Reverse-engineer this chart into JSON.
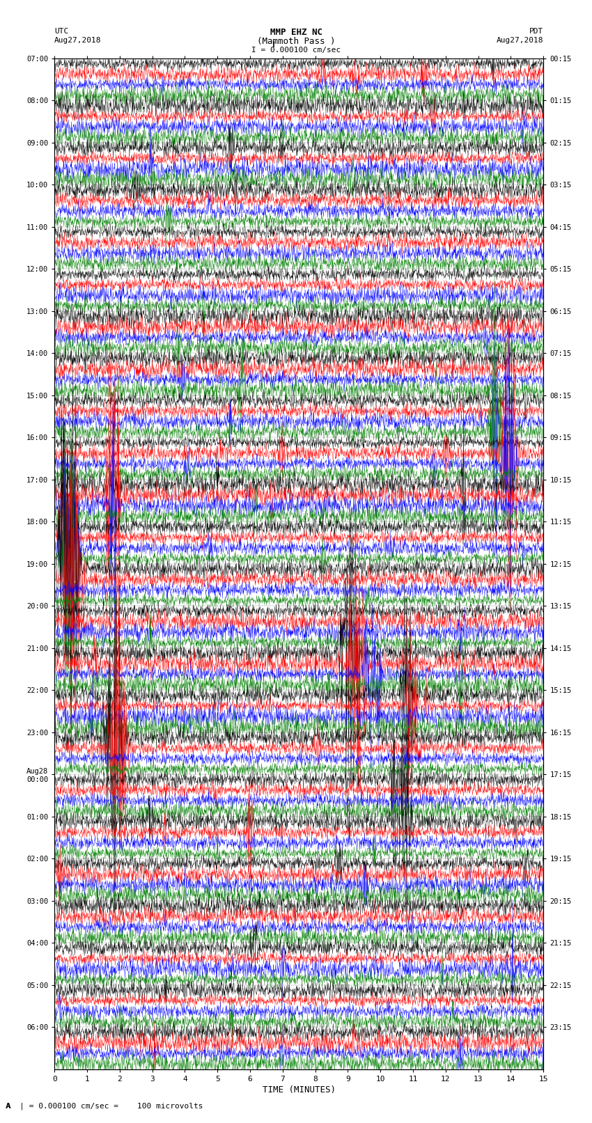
{
  "title_line1": "MMP EHZ NC",
  "title_line2": "(Mammoth Pass )",
  "scale_label": "I = 0.000100 cm/sec",
  "utc_label": "UTC",
  "utc_date": "Aug27,2018",
  "pdt_label": "PDT",
  "pdt_date": "Aug27,2018",
  "bottom_label": "A  | = 0.000100 cm/sec =    100 microvolts",
  "xlabel": "TIME (MINUTES)",
  "left_times": [
    "07:00",
    "",
    "",
    "",
    "08:00",
    "",
    "",
    "",
    "09:00",
    "",
    "",
    "",
    "10:00",
    "",
    "",
    "",
    "11:00",
    "",
    "",
    "",
    "12:00",
    "",
    "",
    "",
    "13:00",
    "",
    "",
    "",
    "14:00",
    "",
    "",
    "",
    "15:00",
    "",
    "",
    "",
    "16:00",
    "",
    "",
    "",
    "17:00",
    "",
    "",
    "",
    "18:00",
    "",
    "",
    "",
    "19:00",
    "",
    "",
    "",
    "20:00",
    "",
    "",
    "",
    "21:00",
    "",
    "",
    "",
    "22:00",
    "",
    "",
    "",
    "23:00",
    "",
    "",
    "",
    "Aug28\n00:00",
    "",
    "",
    "",
    "01:00",
    "",
    "",
    "",
    "02:00",
    "",
    "",
    "",
    "03:00",
    "",
    "",
    "",
    "04:00",
    "",
    "",
    "",
    "05:00",
    "",
    "",
    "",
    "06:00",
    "",
    "",
    ""
  ],
  "right_times": [
    "00:15",
    "",
    "",
    "",
    "01:15",
    "",
    "",
    "",
    "02:15",
    "",
    "",
    "",
    "03:15",
    "",
    "",
    "",
    "04:15",
    "",
    "",
    "",
    "05:15",
    "",
    "",
    "",
    "06:15",
    "",
    "",
    "",
    "07:15",
    "",
    "",
    "",
    "08:15",
    "",
    "",
    "",
    "09:15",
    "",
    "",
    "",
    "10:15",
    "",
    "",
    "",
    "11:15",
    "",
    "",
    "",
    "12:15",
    "",
    "",
    "",
    "13:15",
    "",
    "",
    "",
    "14:15",
    "",
    "",
    "",
    "15:15",
    "",
    "",
    "",
    "16:15",
    "",
    "",
    "",
    "17:15",
    "",
    "",
    "",
    "18:15",
    "",
    "",
    "",
    "19:15",
    "",
    "",
    "",
    "20:15",
    "",
    "",
    "",
    "21:15",
    "",
    "",
    "",
    "22:15",
    "",
    "",
    "",
    "23:15",
    "",
    "",
    ""
  ],
  "n_rows": 96,
  "colors": [
    "black",
    "red",
    "blue",
    "green"
  ],
  "bg_color": "#ffffff",
  "xlim": [
    0,
    15
  ],
  "xticks": [
    0,
    1,
    2,
    3,
    4,
    5,
    6,
    7,
    8,
    9,
    10,
    11,
    12,
    13,
    14,
    15
  ],
  "seed": 42,
  "samples_per_row": 1800,
  "noise_amp": 0.035,
  "row_scale": 0.38
}
